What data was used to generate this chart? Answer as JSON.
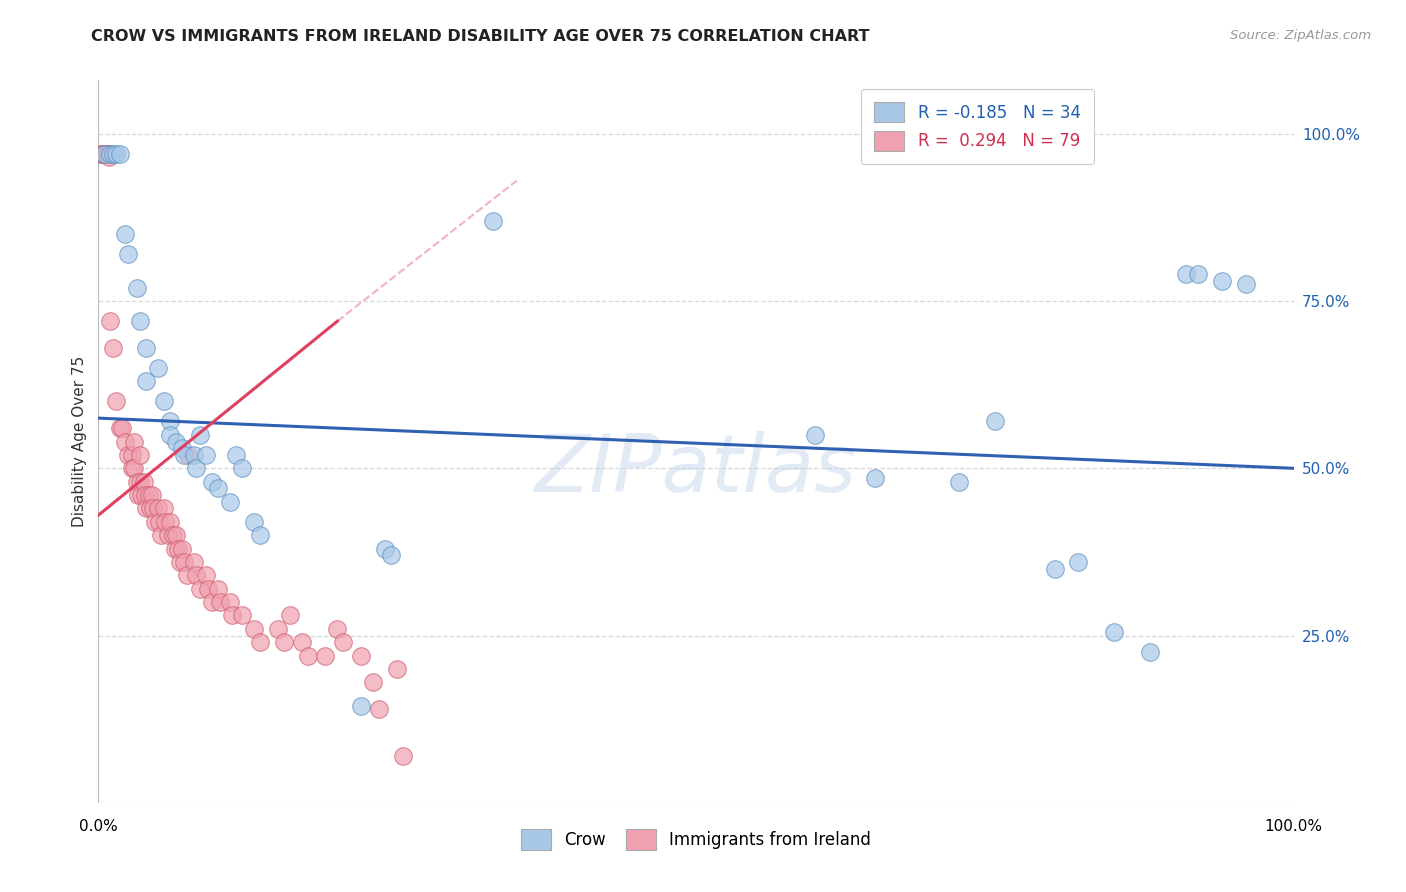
{
  "title": "CROW VS IMMIGRANTS FROM IRELAND DISABILITY AGE OVER 75 CORRELATION CHART",
  "source": "Source: ZipAtlas.com",
  "ylabel": "Disability Age Over 75",
  "watermark": "ZIPatlas",
  "xlim": [
    0.0,
    1.0
  ],
  "ylim": [
    0.0,
    1.08
  ],
  "ytick_values": [
    0.25,
    0.5,
    0.75,
    1.0
  ],
  "ytick_labels": [
    "25.0%",
    "50.0%",
    "75.0%",
    "100.0%"
  ],
  "xtick_values": [
    0.0,
    1.0
  ],
  "xtick_labels": [
    "0.0%",
    "100.0%"
  ],
  "crow_color": "#a8c8e8",
  "crow_edge_color": "#6090c0",
  "ireland_color": "#f0a0b0",
  "ireland_edge_color": "#d06070",
  "crow_line_color": "#3060b0",
  "ireland_line_color": "#e04060",
  "grid_color": "#d8d8d8",
  "background_color": "#ffffff",
  "crow_scatter": [
    [
      0.005,
      0.97
    ],
    [
      0.01,
      0.97
    ],
    [
      0.012,
      0.97
    ],
    [
      0.015,
      0.97
    ],
    [
      0.018,
      0.97
    ],
    [
      0.022,
      0.85
    ],
    [
      0.025,
      0.82
    ],
    [
      0.032,
      0.77
    ],
    [
      0.035,
      0.72
    ],
    [
      0.04,
      0.68
    ],
    [
      0.04,
      0.63
    ],
    [
      0.05,
      0.65
    ],
    [
      0.055,
      0.6
    ],
    [
      0.06,
      0.57
    ],
    [
      0.06,
      0.55
    ],
    [
      0.065,
      0.54
    ],
    [
      0.07,
      0.53
    ],
    [
      0.072,
      0.52
    ],
    [
      0.08,
      0.52
    ],
    [
      0.082,
      0.5
    ],
    [
      0.085,
      0.55
    ],
    [
      0.09,
      0.52
    ],
    [
      0.095,
      0.48
    ],
    [
      0.1,
      0.47
    ],
    [
      0.11,
      0.45
    ],
    [
      0.115,
      0.52
    ],
    [
      0.12,
      0.5
    ],
    [
      0.13,
      0.42
    ],
    [
      0.135,
      0.4
    ],
    [
      0.22,
      0.145
    ],
    [
      0.24,
      0.38
    ],
    [
      0.245,
      0.37
    ],
    [
      0.33,
      0.87
    ],
    [
      0.6,
      0.55
    ],
    [
      0.65,
      0.485
    ],
    [
      0.72,
      0.48
    ],
    [
      0.75,
      0.57
    ],
    [
      0.8,
      0.35
    ],
    [
      0.82,
      0.36
    ],
    [
      0.85,
      0.255
    ],
    [
      0.88,
      0.225
    ],
    [
      0.91,
      0.79
    ],
    [
      0.92,
      0.79
    ],
    [
      0.94,
      0.78
    ],
    [
      0.96,
      0.775
    ]
  ],
  "ireland_scatter": [
    [
      0.002,
      0.97
    ],
    [
      0.003,
      0.97
    ],
    [
      0.004,
      0.97
    ],
    [
      0.005,
      0.97
    ],
    [
      0.006,
      0.97
    ],
    [
      0.007,
      0.97
    ],
    [
      0.008,
      0.97
    ],
    [
      0.009,
      0.965
    ],
    [
      0.01,
      0.72
    ],
    [
      0.012,
      0.68
    ],
    [
      0.015,
      0.6
    ],
    [
      0.018,
      0.56
    ],
    [
      0.02,
      0.56
    ],
    [
      0.022,
      0.54
    ],
    [
      0.025,
      0.52
    ],
    [
      0.028,
      0.52
    ],
    [
      0.028,
      0.5
    ],
    [
      0.03,
      0.54
    ],
    [
      0.03,
      0.5
    ],
    [
      0.032,
      0.48
    ],
    [
      0.033,
      0.46
    ],
    [
      0.035,
      0.52
    ],
    [
      0.035,
      0.48
    ],
    [
      0.036,
      0.46
    ],
    [
      0.038,
      0.48
    ],
    [
      0.039,
      0.46
    ],
    [
      0.04,
      0.44
    ],
    [
      0.042,
      0.46
    ],
    [
      0.043,
      0.44
    ],
    [
      0.045,
      0.46
    ],
    [
      0.046,
      0.44
    ],
    [
      0.047,
      0.42
    ],
    [
      0.05,
      0.44
    ],
    [
      0.051,
      0.42
    ],
    [
      0.052,
      0.4
    ],
    [
      0.055,
      0.44
    ],
    [
      0.056,
      0.42
    ],
    [
      0.058,
      0.4
    ],
    [
      0.06,
      0.42
    ],
    [
      0.062,
      0.4
    ],
    [
      0.064,
      0.38
    ],
    [
      0.065,
      0.4
    ],
    [
      0.067,
      0.38
    ],
    [
      0.068,
      0.36
    ],
    [
      0.07,
      0.38
    ],
    [
      0.072,
      0.36
    ],
    [
      0.074,
      0.34
    ],
    [
      0.075,
      0.52
    ],
    [
      0.08,
      0.36
    ],
    [
      0.082,
      0.34
    ],
    [
      0.085,
      0.32
    ],
    [
      0.09,
      0.34
    ],
    [
      0.092,
      0.32
    ],
    [
      0.095,
      0.3
    ],
    [
      0.1,
      0.32
    ],
    [
      0.102,
      0.3
    ],
    [
      0.11,
      0.3
    ],
    [
      0.112,
      0.28
    ],
    [
      0.12,
      0.28
    ],
    [
      0.13,
      0.26
    ],
    [
      0.135,
      0.24
    ],
    [
      0.15,
      0.26
    ],
    [
      0.155,
      0.24
    ],
    [
      0.16,
      0.28
    ],
    [
      0.17,
      0.24
    ],
    [
      0.175,
      0.22
    ],
    [
      0.19,
      0.22
    ],
    [
      0.2,
      0.26
    ],
    [
      0.205,
      0.24
    ],
    [
      0.22,
      0.22
    ],
    [
      0.23,
      0.18
    ],
    [
      0.235,
      0.14
    ],
    [
      0.25,
      0.2
    ],
    [
      0.255,
      0.07
    ]
  ],
  "crow_reg_line": [
    [
      0.0,
      0.575
    ],
    [
      1.0,
      0.5
    ]
  ],
  "ireland_reg_line_solid": [
    [
      0.0,
      0.43
    ],
    [
      0.2,
      0.72
    ]
  ],
  "ireland_reg_line_dashed": [
    [
      0.2,
      0.72
    ],
    [
      0.35,
      0.93
    ]
  ]
}
